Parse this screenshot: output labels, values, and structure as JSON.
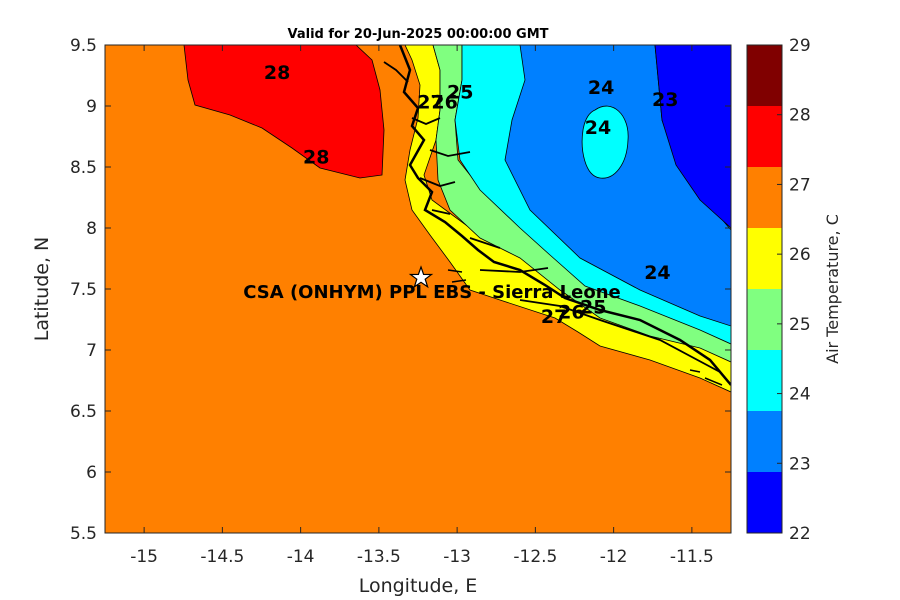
{
  "title": "Valid for 20-Jun-2025 00:00:00 GMT",
  "x_axis": {
    "label": "Longitude, E",
    "ticks": [
      "-15",
      "-14.5",
      "-14",
      "-13.5",
      "-13",
      "-12.5",
      "-12",
      "-11.5"
    ]
  },
  "y_axis": {
    "label": "Latitude, N",
    "ticks": [
      "9.5",
      "9",
      "8.5",
      "8",
      "7.5",
      "7",
      "6.5",
      "6",
      "5.5"
    ]
  },
  "colorbar": {
    "label": "Air Temperature, C",
    "ticks": [
      "29",
      "28",
      "27",
      "26",
      "25",
      "24",
      "23",
      "22"
    ],
    "levels": [
      {
        "range": "28-29",
        "color": "#800000"
      },
      {
        "range": "27-28",
        "color": "#ff0000"
      },
      {
        "range": "26-27",
        "color": "#ff8000"
      },
      {
        "range": "25-26",
        "color": "#ffff00"
      },
      {
        "range": "24-25",
        "color": "#80ff80"
      },
      {
        "range": "23-24",
        "color": "#00ffff"
      },
      {
        "range": "22-23",
        "color": "#0080ff"
      },
      {
        "range": "21-22",
        "color": "#0000ff"
      }
    ]
  },
  "site": {
    "name": "CSA (ONHYM) PPL EBS  - Sierra Leone",
    "lon": -13.23,
    "lat": 7.6,
    "marker": "star-icon"
  },
  "contour_labels": [
    {
      "text": "28",
      "lon": -14.15,
      "lat": 9.22
    },
    {
      "text": "28",
      "lon": -13.9,
      "lat": 8.53
    },
    {
      "text": "27",
      "lon": -13.17,
      "lat": 8.98
    },
    {
      "text": "26",
      "lon": -13.08,
      "lat": 8.98
    },
    {
      "text": "25",
      "lon": -12.98,
      "lat": 9.06
    },
    {
      "text": "24",
      "lon": -12.08,
      "lat": 9.1
    },
    {
      "text": "24",
      "lon": -12.1,
      "lat": 8.77
    },
    {
      "text": "23",
      "lon": -11.67,
      "lat": 9.0
    },
    {
      "text": "24",
      "lon": -11.72,
      "lat": 7.58
    },
    {
      "text": "25",
      "lon": -12.13,
      "lat": 7.3
    },
    {
      "text": "26",
      "lon": -12.27,
      "lat": 7.26
    },
    {
      "text": "27",
      "lon": -12.38,
      "lat": 7.22
    }
  ],
  "chart_data": {
    "type": "heatmap",
    "title": "Valid for 20-Jun-2025 00:00:00 GMT",
    "xlabel": "Longitude, E",
    "ylabel": "Latitude, N",
    "xlim": [
      -15.25,
      -11.25
    ],
    "ylim": [
      5.5,
      9.5
    ],
    "colorbar_label": "Air Temperature, C",
    "clim": [
      22,
      29
    ],
    "contour_levels": [
      23,
      24,
      25,
      26,
      27,
      28
    ],
    "regions": [
      {
        "value_range": "26-27",
        "description": "open ocean (south and west)"
      },
      {
        "value_range": "27-28",
        "description": "northwest ocean patch"
      },
      {
        "value_range": "25-26",
        "description": "coastal strip"
      },
      {
        "value_range": "24-25",
        "description": "inland band"
      },
      {
        "value_range": "23-24",
        "description": "interior"
      },
      {
        "value_range": "22-23",
        "description": "northeast interior"
      }
    ]
  }
}
